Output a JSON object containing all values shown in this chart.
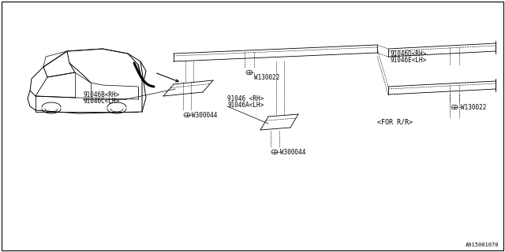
{
  "bg_color": "#ffffff",
  "border_color": "#000000",
  "line_color": "#000000",
  "fig_width": 6.4,
  "fig_height": 3.2,
  "dpi": 100,
  "diagram_id": "A915001070",
  "labels": {
    "part_91046B_RH": "91046B<RH>",
    "part_91046C_LH": "91046C<LH>",
    "part_W300044_1": "W300044",
    "part_91046D_RH": "91046D<RH>",
    "part_91046E_LH": "91046E<LH>",
    "part_W130022_1": "W130022",
    "part_91046_RH": "91046 <RH>",
    "part_91046A_LH": "91046A<LH>",
    "part_W300044_2": "W300044",
    "part_W130022_2": "W130022",
    "for_rr": "<FOR R/R>"
  }
}
